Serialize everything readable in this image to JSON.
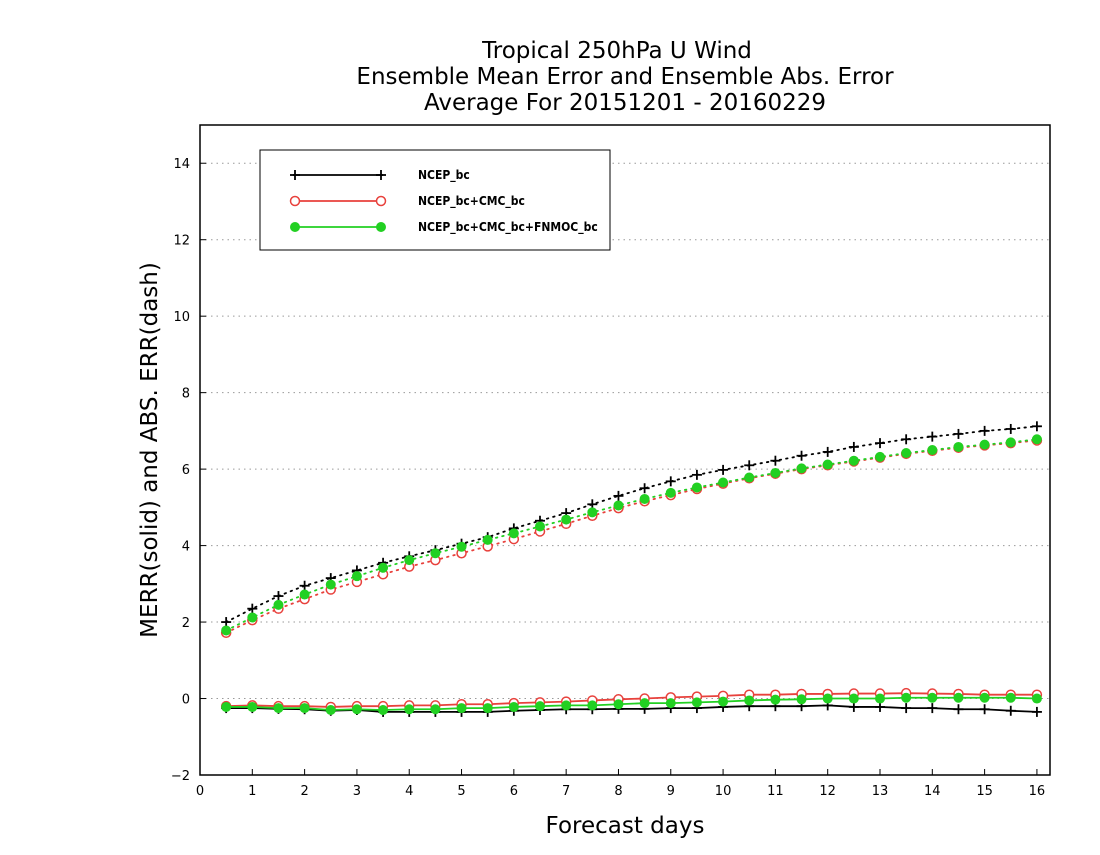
{
  "title_lines": [
    "Tropical 250hPa U Wind",
    "Ensemble Mean Error and Ensemble Abs. Error",
    "Average For 20151201 - 20160229"
  ],
  "chart_data": {
    "type": "line",
    "title": "Tropical 250hPa U Wind / Ensemble Mean Error and Ensemble Abs. Error / Average For 20151201 - 20160229",
    "xlabel": "Forecast days",
    "ylabel": "MERR(solid) and ABS. ERR(dash)",
    "xlim": [
      0,
      16.25
    ],
    "ylim": [
      -2,
      15
    ],
    "xticks": [
      0,
      1,
      2,
      3,
      4,
      5,
      6,
      7,
      8,
      9,
      10,
      11,
      12,
      13,
      14,
      15,
      16
    ],
    "yticks": [
      -2,
      0,
      2,
      4,
      6,
      8,
      10,
      12,
      14
    ],
    "grid": "horizontal dotted",
    "legend_position": "top-left",
    "x": [
      0.5,
      1,
      1.5,
      2,
      2.5,
      3,
      3.5,
      4,
      4.5,
      5,
      5.5,
      6,
      6.5,
      7,
      7.5,
      8,
      8.5,
      9,
      9.5,
      10,
      10.5,
      11,
      11.5,
      12,
      12.5,
      13,
      13.5,
      14,
      14.5,
      15,
      15.5,
      16
    ],
    "series": [
      {
        "name": "NCEP_bc",
        "color": "#000000",
        "marker": "plus",
        "merr": [
          -0.25,
          -0.25,
          -0.27,
          -0.28,
          -0.32,
          -0.3,
          -0.35,
          -0.35,
          -0.35,
          -0.35,
          -0.35,
          -0.32,
          -0.3,
          -0.28,
          -0.28,
          -0.27,
          -0.27,
          -0.25,
          -0.25,
          -0.22,
          -0.2,
          -0.2,
          -0.2,
          -0.18,
          -0.22,
          -0.22,
          -0.25,
          -0.25,
          -0.28,
          -0.28,
          -0.32,
          -0.35
        ],
        "abs_err": [
          2.0,
          2.35,
          2.68,
          2.95,
          3.15,
          3.35,
          3.55,
          3.72,
          3.88,
          4.05,
          4.22,
          4.45,
          4.65,
          4.85,
          5.08,
          5.3,
          5.5,
          5.68,
          5.85,
          5.98,
          6.1,
          6.22,
          6.35,
          6.45,
          6.58,
          6.68,
          6.78,
          6.85,
          6.92,
          7.0,
          7.05,
          7.12
        ]
      },
      {
        "name": "NCEP_bc+CMC_bc",
        "color": "#e8413c",
        "marker": "circle-open",
        "merr": [
          -0.2,
          -0.18,
          -0.2,
          -0.2,
          -0.22,
          -0.2,
          -0.2,
          -0.18,
          -0.18,
          -0.15,
          -0.15,
          -0.12,
          -0.1,
          -0.08,
          -0.05,
          -0.02,
          0.0,
          0.03,
          0.05,
          0.07,
          0.1,
          0.1,
          0.12,
          0.12,
          0.13,
          0.13,
          0.14,
          0.13,
          0.12,
          0.1,
          0.1,
          0.1
        ],
        "abs_err": [
          1.72,
          2.05,
          2.35,
          2.6,
          2.85,
          3.05,
          3.25,
          3.45,
          3.62,
          3.8,
          3.98,
          4.17,
          4.37,
          4.57,
          4.78,
          4.98,
          5.16,
          5.32,
          5.48,
          5.62,
          5.76,
          5.88,
          6.0,
          6.1,
          6.2,
          6.3,
          6.4,
          6.48,
          6.56,
          6.62,
          6.68,
          6.75
        ]
      },
      {
        "name": "NCEP_bc+CMC_bc+FNMOC_bc",
        "color": "#22d022",
        "marker": "circle-filled",
        "merr": [
          -0.22,
          -0.22,
          -0.25,
          -0.25,
          -0.3,
          -0.28,
          -0.3,
          -0.28,
          -0.28,
          -0.25,
          -0.25,
          -0.22,
          -0.2,
          -0.18,
          -0.18,
          -0.15,
          -0.12,
          -0.12,
          -0.1,
          -0.08,
          -0.05,
          -0.03,
          -0.02,
          0.0,
          0.0,
          0.0,
          0.02,
          0.02,
          0.02,
          0.02,
          0.02,
          0.0
        ],
        "abs_err": [
          1.78,
          2.12,
          2.45,
          2.72,
          2.98,
          3.2,
          3.42,
          3.62,
          3.8,
          3.97,
          4.15,
          4.32,
          4.5,
          4.68,
          4.87,
          5.05,
          5.22,
          5.38,
          5.52,
          5.65,
          5.78,
          5.9,
          6.02,
          6.12,
          6.22,
          6.32,
          6.42,
          6.5,
          6.58,
          6.64,
          6.7,
          6.78
        ]
      }
    ]
  }
}
